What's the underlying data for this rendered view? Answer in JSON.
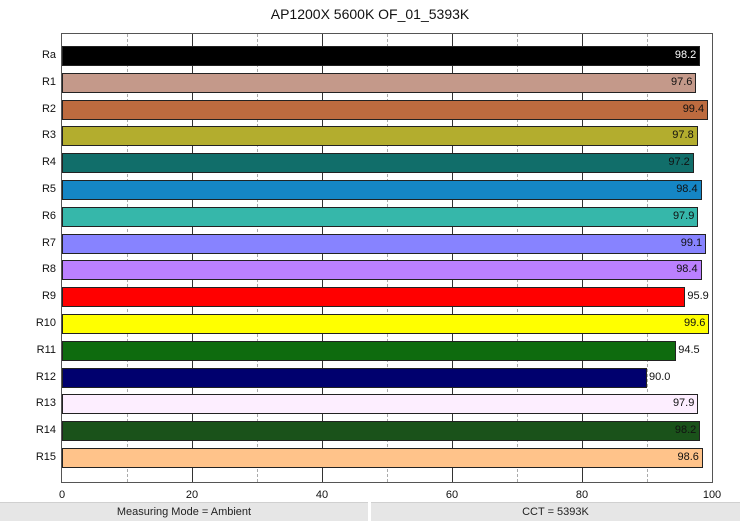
{
  "title": "AP1200X 5600K OF_01_5393K",
  "status_bar": {
    "measuring_mode": "Measuring Mode = Ambient",
    "cct": "CCT = 5393K"
  },
  "x_ticks": [
    "0",
    "20",
    "40",
    "60",
    "80",
    "100"
  ],
  "chart_data": {
    "type": "bar",
    "orientation": "horizontal",
    "title": "AP1200X 5600K OF_01_5393K",
    "xlabel": "",
    "ylabel": "",
    "xlim": [
      0,
      100
    ],
    "x_ticks": [
      0,
      20,
      40,
      60,
      80,
      100
    ],
    "grid": {
      "major_step": 20,
      "minor_step": 10,
      "minor_dashed": true
    },
    "legend": null,
    "categories": [
      "Ra",
      "R1",
      "R2",
      "R3",
      "R4",
      "R5",
      "R6",
      "R7",
      "R8",
      "R9",
      "R10",
      "R11",
      "R12",
      "R13",
      "R14",
      "R15"
    ],
    "values": [
      98.2,
      97.6,
      99.4,
      97.8,
      97.2,
      98.4,
      97.9,
      99.1,
      98.4,
      95.9,
      99.6,
      94.5,
      90.0,
      97.9,
      98.2,
      98.6
    ],
    "labels": [
      "98.2",
      "97.6",
      "99.4",
      "97.8",
      "97.2",
      "98.4",
      "97.9",
      "99.1",
      "98.4",
      "95.9",
      "99.6",
      "94.5",
      "90.0",
      "97.9",
      "98.2",
      "98.6"
    ],
    "colors": [
      "#000000",
      "#c4998a",
      "#bd6b3f",
      "#b3ad2e",
      "#116e6a",
      "#1586c5",
      "#36b7aa",
      "#8783ff",
      "#bb80ff",
      "#ff0000",
      "#ffff00",
      "#0e6b0e",
      "#00006e",
      "#fdeeff",
      "#1a521a",
      "#ffc38a"
    ],
    "label_colors": [
      "#ffffff",
      "#111111",
      "#111111",
      "#111111",
      "#111111",
      "#111111",
      "#111111",
      "#111111",
      "#111111",
      "#111111",
      "#111111",
      "#111111",
      "#111111",
      "#111111",
      "#111111",
      "#111111"
    ],
    "label_inside": [
      true,
      true,
      true,
      true,
      true,
      true,
      true,
      true,
      true,
      false,
      true,
      false,
      false,
      true,
      true,
      true
    ]
  }
}
